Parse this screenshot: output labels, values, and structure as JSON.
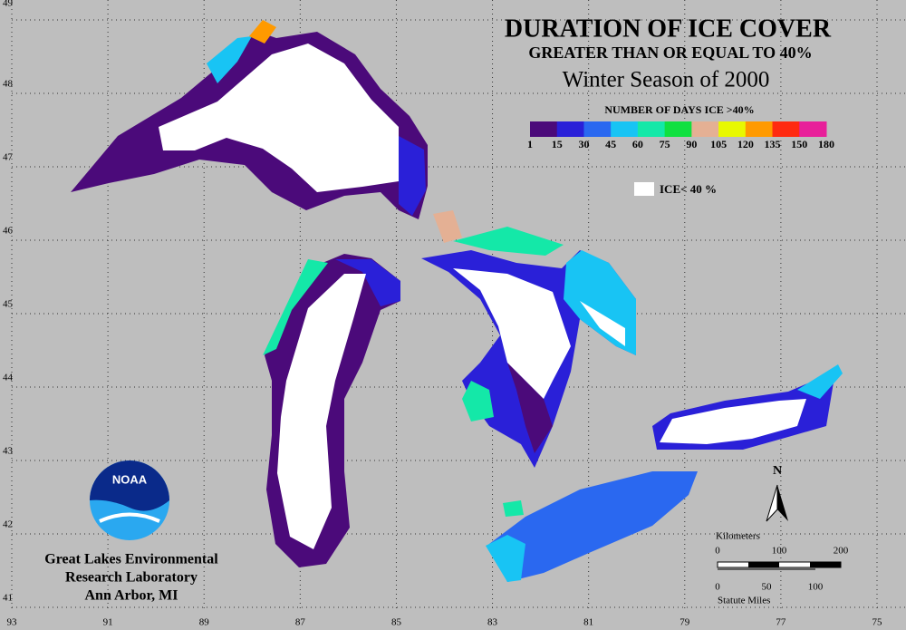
{
  "title": "DURATION OF ICE COVER",
  "subtitle": "GREATER THAN OR EQUAL TO 40%",
  "season": "Winter Season of 2000",
  "legend": {
    "title": "NUMBER OF DAYS ICE >40%",
    "colors": [
      "#4b0a7a",
      "#2a20d8",
      "#2a68f0",
      "#18c4f4",
      "#14e8a8",
      "#10e040",
      "#e4b094",
      "#e8f800",
      "#ff9a00",
      "#ff2a10",
      "#e8209a"
    ],
    "labels": [
      "1",
      "15",
      "30",
      "45",
      "60",
      "75",
      "90",
      "105",
      "120",
      "135",
      "150",
      "180"
    ],
    "white_label": "ICE< 40 %"
  },
  "lat_ticks": [
    49,
    48,
    47,
    46,
    45,
    44,
    43,
    42,
    41
  ],
  "lon_ticks": [
    93,
    91,
    89,
    87,
    85,
    83,
    81,
    79,
    77,
    75
  ],
  "logo": "NOAA",
  "credit": [
    "Great Lakes Environmental",
    "Research Laboratory",
    "Ann Arbor, MI"
  ],
  "north": "N",
  "scale": {
    "km_label": "Kilometers",
    "km_ticks": [
      "0",
      "100",
      "200"
    ],
    "mi_label": "Statute Miles",
    "mi_ticks": [
      "0",
      "50",
      "100"
    ]
  }
}
